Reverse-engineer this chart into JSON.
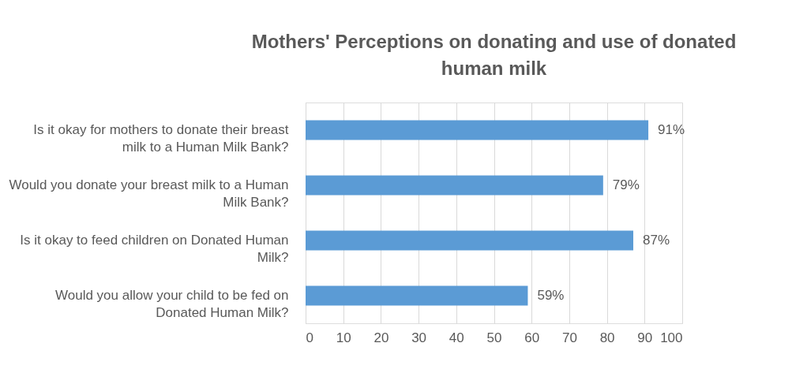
{
  "chart_data": {
    "type": "bar",
    "orientation": "horizontal",
    "title": "Mothers' Perceptions on donating and use of donated human milk",
    "categories": [
      "Is it okay for mothers to donate their breast milk to a Human Milk Bank?",
      "Would you donate your breast milk to a Human Milk Bank?",
      "Is it okay to feed children on Donated Human Milk?",
      "Would you allow your child to be fed on Donated Human Milk?"
    ],
    "values": [
      91,
      79,
      87,
      59
    ],
    "value_labels": [
      "91%",
      "79%",
      "87%",
      "59%"
    ],
    "color": "#5b9bd5",
    "xlim": [
      0,
      100
    ],
    "xticks": [
      0,
      10,
      20,
      30,
      40,
      50,
      60,
      70,
      80,
      90,
      100
    ],
    "grid": "x"
  }
}
